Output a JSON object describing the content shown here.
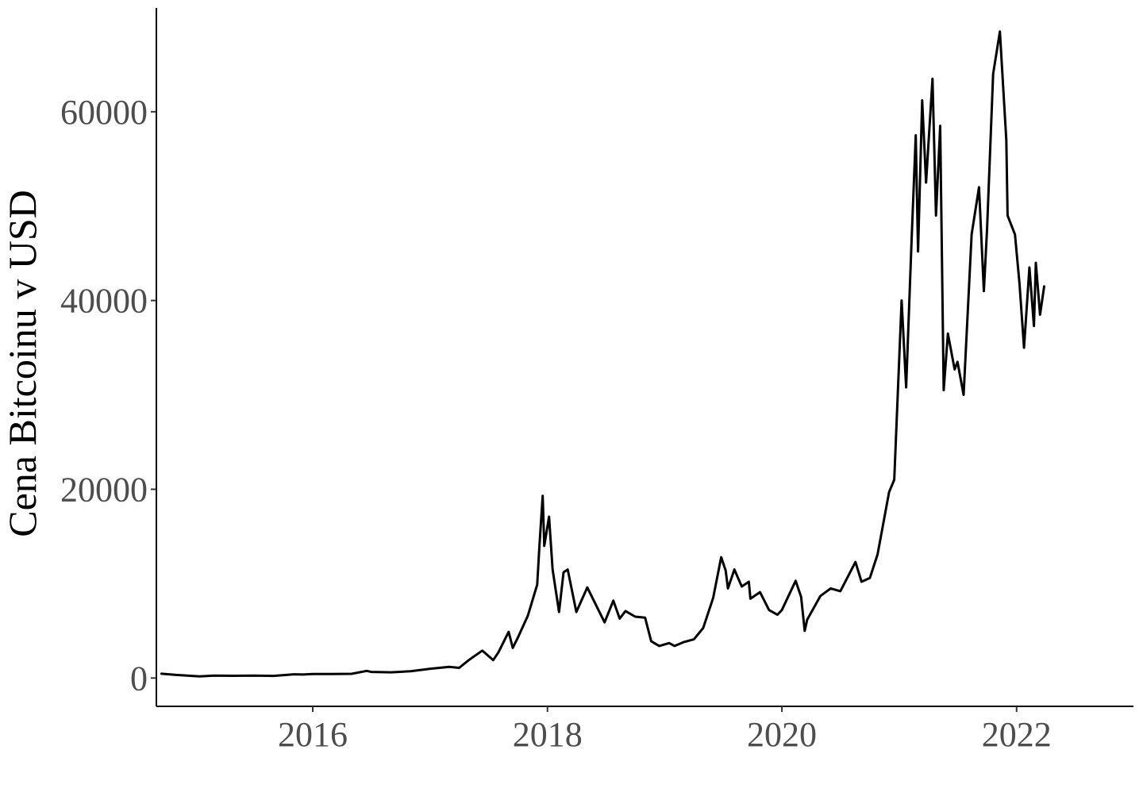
{
  "chart_data": {
    "type": "line",
    "title": "",
    "xlabel": "",
    "ylabel": "Cena Bitcoinu v USD",
    "x_ticks": [
      "2016",
      "2018",
      "2020",
      "2022"
    ],
    "y_ticks": [
      "0",
      "20000",
      "40000",
      "60000"
    ],
    "xlim": [
      "2014-09-01",
      "2022-12-31"
    ],
    "ylim": [
      -3000,
      71000
    ],
    "grid": false,
    "legend": "none",
    "colors": {
      "line": "#000000",
      "axis": "#000000",
      "tick_label": "#4d4d4d"
    },
    "series": [
      {
        "x": [
          "2014-09-17",
          "2014-11-01",
          "2015-01-14",
          "2015-03-01",
          "2015-05-01",
          "2015-07-01",
          "2015-09-01",
          "2015-11-04",
          "2015-12-01",
          "2016-01-01",
          "2016-03-01",
          "2016-05-01",
          "2016-06-17",
          "2016-07-01",
          "2016-09-01",
          "2016-11-01",
          "2017-01-01",
          "2017-03-01",
          "2017-04-01",
          "2017-05-01",
          "2017-06-12",
          "2017-07-16",
          "2017-08-01",
          "2017-09-02",
          "2017-09-15",
          "2017-10-01",
          "2017-11-01",
          "2017-11-30",
          "2017-12-07",
          "2017-12-17",
          "2017-12-22",
          "2018-01-06",
          "2018-01-17",
          "2018-02-06",
          "2018-02-20",
          "2018-03-05",
          "2018-04-01",
          "2018-05-05",
          "2018-06-28",
          "2018-07-25",
          "2018-08-14",
          "2018-09-01",
          "2018-10-01",
          "2018-11-01",
          "2018-11-20",
          "2018-12-15",
          "2019-01-15",
          "2019-02-01",
          "2019-03-01",
          "2019-04-02",
          "2019-05-01",
          "2019-06-01",
          "2019-06-26",
          "2019-07-10",
          "2019-07-17",
          "2019-08-06",
          "2019-08-29",
          "2019-09-20",
          "2019-09-25",
          "2019-10-25",
          "2019-11-22",
          "2019-12-18",
          "2020-01-01",
          "2020-02-13",
          "2020-03-01",
          "2020-03-12",
          "2020-03-20",
          "2020-04-30",
          "2020-06-01",
          "2020-07-01",
          "2020-07-30",
          "2020-08-17",
          "2020-09-05",
          "2020-10-01",
          "2020-10-25",
          "2020-11-30",
          "2020-12-16",
          "2021-01-08",
          "2021-01-22",
          "2021-02-08",
          "2021-02-21",
          "2021-02-28",
          "2021-03-13",
          "2021-03-25",
          "2021-04-14",
          "2021-04-25",
          "2021-05-08",
          "2021-05-19",
          "2021-06-01",
          "2021-06-22",
          "2021-07-01",
          "2021-07-20",
          "2021-08-14",
          "2021-09-06",
          "2021-09-21",
          "2021-10-01",
          "2021-10-20",
          "2021-11-10",
          "2021-11-30",
          "2021-12-04",
          "2021-12-27",
          "2022-01-10",
          "2022-01-24",
          "2022-02-10",
          "2022-02-24",
          "2022-03-02",
          "2022-03-15",
          "2022-03-28"
        ],
        "y": [
          460,
          330,
          180,
          260,
          235,
          260,
          230,
          400,
          370,
          430,
          420,
          450,
          760,
          650,
          610,
          720,
          990,
          1190,
          1080,
          1900,
          2900,
          1900,
          2700,
          4900,
          3200,
          4300,
          6600,
          9900,
          14000,
          19300,
          14000,
          17100,
          11500,
          7000,
          11200,
          11500,
          7000,
          9600,
          5900,
          8200,
          6300,
          7100,
          6500,
          6400,
          3900,
          3400,
          3700,
          3400,
          3800,
          4100,
          5300,
          8500,
          12800,
          11400,
          9500,
          11500,
          9700,
          10200,
          8400,
          9100,
          7200,
          6700,
          7200,
          10300,
          8600,
          5000,
          6200,
          8700,
          9500,
          9200,
          11100,
          12300,
          10200,
          10600,
          13100,
          19700,
          21000,
          40000,
          30800,
          46500,
          57500,
          45200,
          61200,
          52500,
          63500,
          49000,
          58500,
          30500,
          36500,
          32700,
          33500,
          30000,
          47000,
          52000,
          41000,
          47500,
          64000,
          68500,
          57000,
          49000,
          47000,
          41800,
          35000,
          43500,
          37300,
          44000,
          38500,
          41500
        ]
      }
    ]
  }
}
